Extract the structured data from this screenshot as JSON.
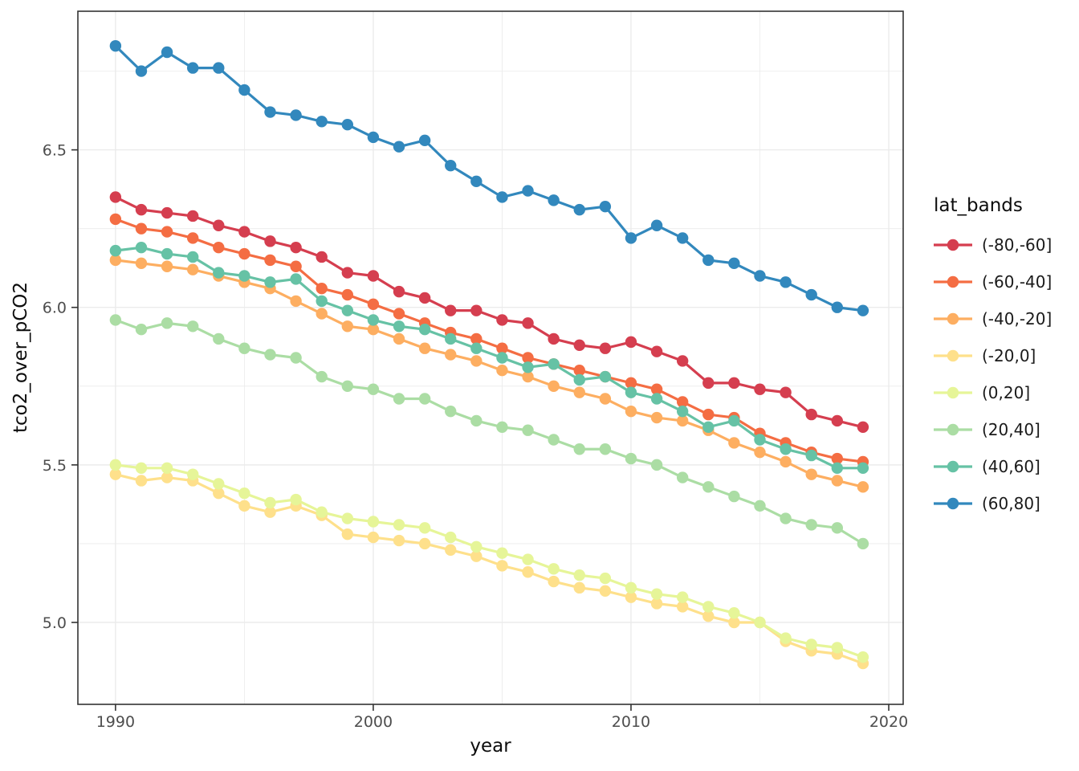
{
  "chart_data": {
    "type": "line",
    "title": "",
    "xlabel": "year",
    "ylabel": "tco2_over_pCO2",
    "legend_title": "lat_bands",
    "legend_position": "right",
    "grid": true,
    "marker": "point",
    "x": [
      1990,
      1991,
      1992,
      1993,
      1994,
      1995,
      1996,
      1997,
      1998,
      1999,
      2000,
      2001,
      2002,
      2003,
      2004,
      2005,
      2006,
      2007,
      2008,
      2009,
      2010,
      2011,
      2012,
      2013,
      2014,
      2015,
      2016,
      2017,
      2018,
      2019
    ],
    "xlim": [
      1988.54,
      2020.56
    ],
    "ylim": [
      4.74,
      6.94
    ],
    "x_major_ticks": [
      1990,
      2000,
      2010,
      2020
    ],
    "x_tick_labels": [
      "1990",
      "2000",
      "2010",
      "2020"
    ],
    "x_minor_ticks": [
      1995,
      2005,
      2015
    ],
    "y_major_ticks": [
      5.0,
      5.5,
      6.0,
      6.5
    ],
    "y_tick_labels": [
      "5.0",
      "5.5",
      "6.0",
      "6.5"
    ],
    "y_minor_ticks": [
      5.25,
      5.75,
      6.25,
      6.75
    ],
    "series": [
      {
        "name": "(-80,-60]",
        "color": "#D53E4F",
        "values": [
          6.35,
          6.31,
          6.3,
          6.29,
          6.26,
          6.24,
          6.21,
          6.19,
          6.16,
          6.11,
          6.1,
          6.05,
          6.03,
          5.99,
          5.99,
          5.96,
          5.95,
          5.9,
          5.88,
          5.87,
          5.89,
          5.86,
          5.83,
          5.76,
          5.76,
          5.74,
          5.73,
          5.66,
          5.64,
          5.62
        ]
      },
      {
        "name": "(-60,-40]",
        "color": "#F46D43",
        "values": [
          6.28,
          6.25,
          6.24,
          6.22,
          6.19,
          6.17,
          6.15,
          6.13,
          6.06,
          6.04,
          6.01,
          5.98,
          5.95,
          5.92,
          5.9,
          5.87,
          5.84,
          5.82,
          5.8,
          5.78,
          5.76,
          5.74,
          5.7,
          5.66,
          5.65,
          5.6,
          5.57,
          5.54,
          5.52,
          5.51
        ]
      },
      {
        "name": "(-40,-20]",
        "color": "#FDAE61",
        "values": [
          6.15,
          6.14,
          6.13,
          6.12,
          6.1,
          6.08,
          6.06,
          6.02,
          5.98,
          5.94,
          5.93,
          5.9,
          5.87,
          5.85,
          5.83,
          5.8,
          5.78,
          5.75,
          5.73,
          5.71,
          5.67,
          5.65,
          5.64,
          5.61,
          5.57,
          5.54,
          5.51,
          5.47,
          5.45,
          5.43
        ]
      },
      {
        "name": "(-20,0]",
        "color": "#FEE08B",
        "values": [
          5.47,
          5.45,
          5.46,
          5.45,
          5.41,
          5.37,
          5.35,
          5.37,
          5.34,
          5.28,
          5.27,
          5.26,
          5.25,
          5.23,
          5.21,
          5.18,
          5.16,
          5.13,
          5.11,
          5.1,
          5.08,
          5.06,
          5.05,
          5.02,
          5.0,
          5.0,
          4.94,
          4.91,
          4.9,
          4.87
        ]
      },
      {
        "name": "(0,20]",
        "color": "#E6F598",
        "values": [
          5.5,
          5.49,
          5.49,
          5.47,
          5.44,
          5.41,
          5.38,
          5.39,
          5.35,
          5.33,
          5.32,
          5.31,
          5.3,
          5.27,
          5.24,
          5.22,
          5.2,
          5.17,
          5.15,
          5.14,
          5.11,
          5.09,
          5.08,
          5.05,
          5.03,
          5.0,
          4.95,
          4.93,
          4.92,
          4.89
        ]
      },
      {
        "name": "(20,40]",
        "color": "#ABDDA4",
        "values": [
          5.96,
          5.93,
          5.95,
          5.94,
          5.9,
          5.87,
          5.85,
          5.84,
          5.78,
          5.75,
          5.74,
          5.71,
          5.71,
          5.67,
          5.64,
          5.62,
          5.61,
          5.58,
          5.55,
          5.55,
          5.52,
          5.5,
          5.46,
          5.43,
          5.4,
          5.37,
          5.33,
          5.31,
          5.3,
          5.25
        ]
      },
      {
        "name": "(40,60]",
        "color": "#66C2A5",
        "values": [
          6.18,
          6.19,
          6.17,
          6.16,
          6.11,
          6.1,
          6.08,
          6.09,
          6.02,
          5.99,
          5.96,
          5.94,
          5.93,
          5.9,
          5.87,
          5.84,
          5.81,
          5.82,
          5.77,
          5.78,
          5.73,
          5.71,
          5.67,
          5.62,
          5.64,
          5.58,
          5.55,
          5.53,
          5.49,
          5.49
        ]
      },
      {
        "name": "(60,80]",
        "color": "#3288BD",
        "values": [
          6.83,
          6.75,
          6.81,
          6.76,
          6.76,
          6.69,
          6.62,
          6.61,
          6.59,
          6.58,
          6.54,
          6.51,
          6.53,
          6.45,
          6.4,
          6.35,
          6.37,
          6.34,
          6.31,
          6.32,
          6.22,
          6.26,
          6.22,
          6.15,
          6.14,
          6.1,
          6.08,
          6.04,
          6.0,
          5.99
        ]
      }
    ],
    "style": {
      "grid_color": "#ebebeb",
      "panel_border_color": "#333333",
      "tick_mark_color": "#333333",
      "background": "#ffffff"
    }
  }
}
